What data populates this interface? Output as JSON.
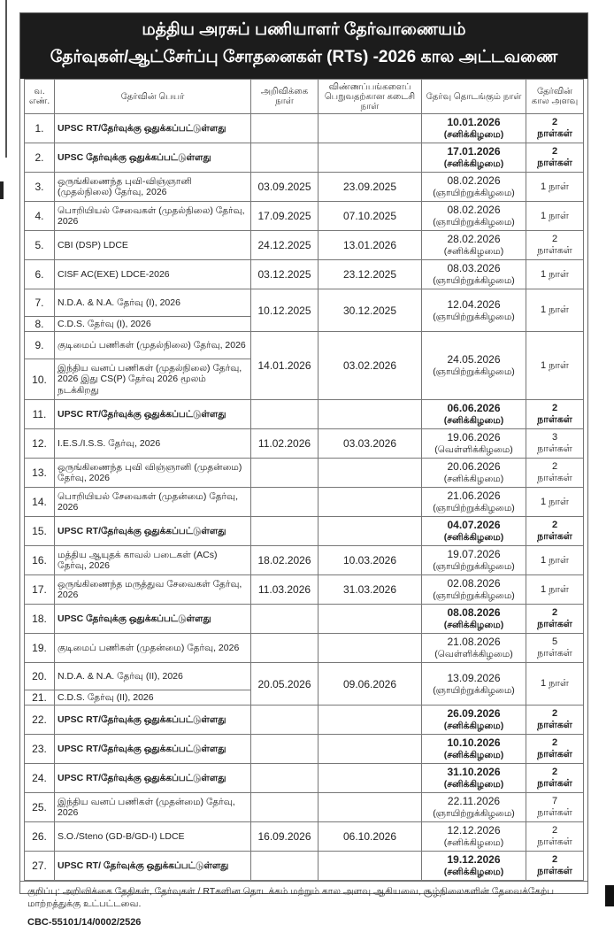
{
  "title_line1": "மத்திய அரசுப் பணியாளர் தேர்வாணையம்",
  "title_line2": "தேர்வுகள்/ஆட்சேர்ப்பு சோதனைகள் (RTs) -2026 கால அட்டவணை",
  "columns": [
    "வ. எண்.",
    "தேர்வின் பெயர்",
    "அறிவிக்கை நாள்",
    "விண்ணப்பங்களைப் பெறுவதற்கான கடைசி நாள்",
    "தேர்வு தொடங்கும் நாள்",
    "தேர்வின் கால அளவு"
  ],
  "rows": [
    {
      "items": [
        {
          "no": "1.",
          "name": "UPSC RT/தேர்வுக்கு ஒதுக்கப்பட்டுள்ளது"
        }
      ],
      "notification": "",
      "last_date": "",
      "exam_date": "10.01.2026",
      "exam_day": "(சனிக்கிழமை)",
      "duration": "2 நாள்கள்",
      "bold": true
    },
    {
      "items": [
        {
          "no": "2.",
          "name": "UPSC தேர்வுக்கு ஒதுக்கப்பட்டுள்ளது"
        }
      ],
      "notification": "",
      "last_date": "",
      "exam_date": "17.01.2026",
      "exam_day": "(சனிக்கிழமை)",
      "duration": "2 நாள்கள்",
      "bold": true
    },
    {
      "items": [
        {
          "no": "3.",
          "name": "ஒருங்கிணைந்த புவி-விஞ்ஞானி (முதல்நிலை) தேர்வு, 2026"
        }
      ],
      "notification": "03.09.2025",
      "last_date": "23.09.2025",
      "exam_date": "08.02.2026",
      "exam_day": "(ஞாயிற்றுக்கிழமை)",
      "duration": "1 நாள்"
    },
    {
      "items": [
        {
          "no": "4.",
          "name": "பொறியியல் சேவைகள் (முதல்நிலை) தேர்வு, 2026"
        }
      ],
      "notification": "17.09.2025",
      "last_date": "07.10.2025",
      "exam_date": "08.02.2026",
      "exam_day": "(ஞாயிற்றுக்கிழமை)",
      "duration": "1 நாள்"
    },
    {
      "items": [
        {
          "no": "5.",
          "name": "CBI (DSP) LDCE"
        }
      ],
      "notification": "24.12.2025",
      "last_date": "13.01.2026",
      "exam_date": "28.02.2026",
      "exam_day": "(சனிக்கிழமை)",
      "duration": "2 நாள்கள்"
    },
    {
      "items": [
        {
          "no": "6.",
          "name": "CISF AC(EXE) LDCE-2026"
        }
      ],
      "notification": "03.12.2025",
      "last_date": "23.12.2025",
      "exam_date": "08.03.2026",
      "exam_day": "(ஞாயிற்றுக்கிழமை)",
      "duration": "1 நாள்"
    },
    {
      "items": [
        {
          "no": "7.",
          "name": "N.D.A. & N.A. தேர்வு (I), 2026"
        },
        {
          "no": "8.",
          "name": "C.D.S. தேர்வு (I), 2026"
        }
      ],
      "notification": "10.12.2025",
      "last_date": "30.12.2025",
      "exam_date": "12.04.2026",
      "exam_day": "(ஞாயிற்றுக்கிழமை)",
      "duration": "1 நாள்"
    },
    {
      "items": [
        {
          "no": "9.",
          "name": "குடிமைப் பணிகள் (முதல்நிலை) தேர்வு, 2026"
        },
        {
          "no": "10.",
          "name": "இந்திய வனப் பணிகள் (முதல்நிலை) தேர்வு, 2026   இது CS(P) தேர்வு 2026 மூலம் நடக்கிறது"
        }
      ],
      "notification": "14.01.2026",
      "last_date": "03.02.2026",
      "exam_date": "24.05.2026",
      "exam_day": "(ஞாயிற்றுக்கிழமை)",
      "duration": "1 நாள்"
    },
    {
      "items": [
        {
          "no": "11.",
          "name": "UPSC RT/தேர்வுக்கு ஒதுக்கப்பட்டுள்ளது"
        }
      ],
      "notification": "",
      "last_date": "",
      "exam_date": "06.06.2026",
      "exam_day": "(சனிக்கிழமை)",
      "duration": "2 நாள்கள்",
      "bold": true
    },
    {
      "items": [
        {
          "no": "12.",
          "name": "I.E.S./I.S.S. தேர்வு, 2026"
        }
      ],
      "notification": "11.02.2026",
      "last_date": "03.03.2026",
      "exam_date": "19.06.2026",
      "exam_day": "(வெள்ளிக்கிழமை)",
      "duration": "3 நாள்கள்"
    },
    {
      "items": [
        {
          "no": "13.",
          "name": "ஒருங்கிணைந்த புவி விஞ்ஞானி (முதன்மை) தேர்வு, 2026"
        }
      ],
      "notification": "",
      "last_date": "",
      "exam_date": "20.06.2026",
      "exam_day": "(சனிக்கிழமை)",
      "duration": "2 நாள்கள்"
    },
    {
      "items": [
        {
          "no": "14.",
          "name": "பொறியியல் சேவைகள் (முதன்மை) தேர்வு, 2026"
        }
      ],
      "notification": "",
      "last_date": "",
      "exam_date": "21.06.2026",
      "exam_day": "(ஞாயிற்றுக்கிழமை)",
      "duration": "1 நாள்"
    },
    {
      "items": [
        {
          "no": "15.",
          "name": "UPSC RT/தேர்வுக்கு ஒதுக்கப்பட்டுள்ளது"
        }
      ],
      "notification": "",
      "last_date": "",
      "exam_date": "04.07.2026",
      "exam_day": "(சனிக்கிழமை)",
      "duration": "2 நாள்கள்",
      "bold": true
    },
    {
      "items": [
        {
          "no": "16.",
          "name": "மத்திய ஆயுதக் காவல் படைகள் (ACs) தேர்வு, 2026"
        }
      ],
      "notification": "18.02.2026",
      "last_date": "10.03.2026",
      "exam_date": "19.07.2026",
      "exam_day": "(ஞாயிற்றுக்கிழமை)",
      "duration": "1 நாள்"
    },
    {
      "items": [
        {
          "no": "17.",
          "name": "ஒருங்கிணைந்த மருத்துவ சேவைகள் தேர்வு, 2026"
        }
      ],
      "notification": "11.03.2026",
      "last_date": "31.03.2026",
      "exam_date": "02.08.2026",
      "exam_day": "(ஞாயிற்றுக்கிழமை)",
      "duration": "1 நாள்"
    },
    {
      "items": [
        {
          "no": "18.",
          "name": "UPSC தேர்வுக்கு ஒதுக்கப்பட்டுள்ளது"
        }
      ],
      "notification": "",
      "last_date": "",
      "exam_date": "08.08.2026",
      "exam_day": "(சனிக்கிழமை)",
      "duration": "2 நாள்கள்",
      "bold": true
    },
    {
      "items": [
        {
          "no": "19.",
          "name": "குடிமைப் பணிகள்  (முதன்மை) தேர்வு, 2026"
        }
      ],
      "notification": "",
      "last_date": "",
      "exam_date": "21.08.2026",
      "exam_day": "(வெள்ளிக்கிழமை)",
      "duration": "5 நாள்கள்"
    },
    {
      "items": [
        {
          "no": "20.",
          "name": "N.D.A. & N.A. தேர்வு (II), 2026"
        },
        {
          "no": "21.",
          "name": "C.D.S. தேர்வு (II), 2026"
        }
      ],
      "notification": "20.05.2026",
      "last_date": "09.06.2026",
      "exam_date": "13.09.2026",
      "exam_day": "(ஞாயிற்றுக்கிழமை)",
      "duration": "1 நாள்"
    },
    {
      "items": [
        {
          "no": "22.",
          "name": "UPSC RT/தேர்வுக்கு ஒதுக்கப்பட்டுள்ளது"
        }
      ],
      "notification": "",
      "last_date": "",
      "exam_date": "26.09.2026",
      "exam_day": "(சனிக்கிழமை)",
      "duration": "2 நாள்கள்",
      "bold": true
    },
    {
      "items": [
        {
          "no": "23.",
          "name": "UPSC RT/தேர்வுக்கு ஒதுக்கப்பட்டுள்ளது"
        }
      ],
      "notification": "",
      "last_date": "",
      "exam_date": "10.10.2026",
      "exam_day": "(சனிக்கிழமை)",
      "duration": "2 நாள்கள்",
      "bold": true
    },
    {
      "items": [
        {
          "no": "24.",
          "name": "UPSC RT/தேர்வுக்கு ஒதுக்கப்பட்டுள்ளது"
        }
      ],
      "notification": "",
      "last_date": "",
      "exam_date": "31.10.2026",
      "exam_day": "(சனிக்கிழமை)",
      "duration": "2 நாள்கள்",
      "bold": true
    },
    {
      "items": [
        {
          "no": "25.",
          "name": "இந்திய வனப் பணிகள் (முதன்மை) தேர்வு, 2026"
        }
      ],
      "notification": "",
      "last_date": "",
      "exam_date": "22.11.2026",
      "exam_day": "(ஞாயிற்றுக்கிழமை)",
      "duration": "7 நாள்கள்"
    },
    {
      "items": [
        {
          "no": "26.",
          "name": "S.O./Steno (GD-B/GD-I) LDCE"
        }
      ],
      "notification": "16.09.2026",
      "last_date": "06.10.2026",
      "exam_date": "12.12.2026",
      "exam_day": "(சனிக்கிழமை)",
      "duration": "2 நாள்கள்"
    },
    {
      "items": [
        {
          "no": "27.",
          "name": "UPSC RT/ தேர்வுக்கு ஒதுக்கப்பட்டுள்ளது"
        }
      ],
      "notification": "",
      "last_date": "",
      "exam_date": "19.12.2026",
      "exam_day": "(சனிக்கிழமை)",
      "duration": "2 நாள்கள்",
      "bold": true
    }
  ],
  "note": "குறிப்பு: அறிவிக்கை தேதிகள், தேர்வுகள் / RTகளின தொடக்கம் மற்றும் கால அளவு ஆகியவை, சூழ்நிலைகளின் தேவைக்கேற்ப மாற்றத்துக்கு உட்பட்டவை.",
  "code": "CBC-55101/14/0002/2526"
}
